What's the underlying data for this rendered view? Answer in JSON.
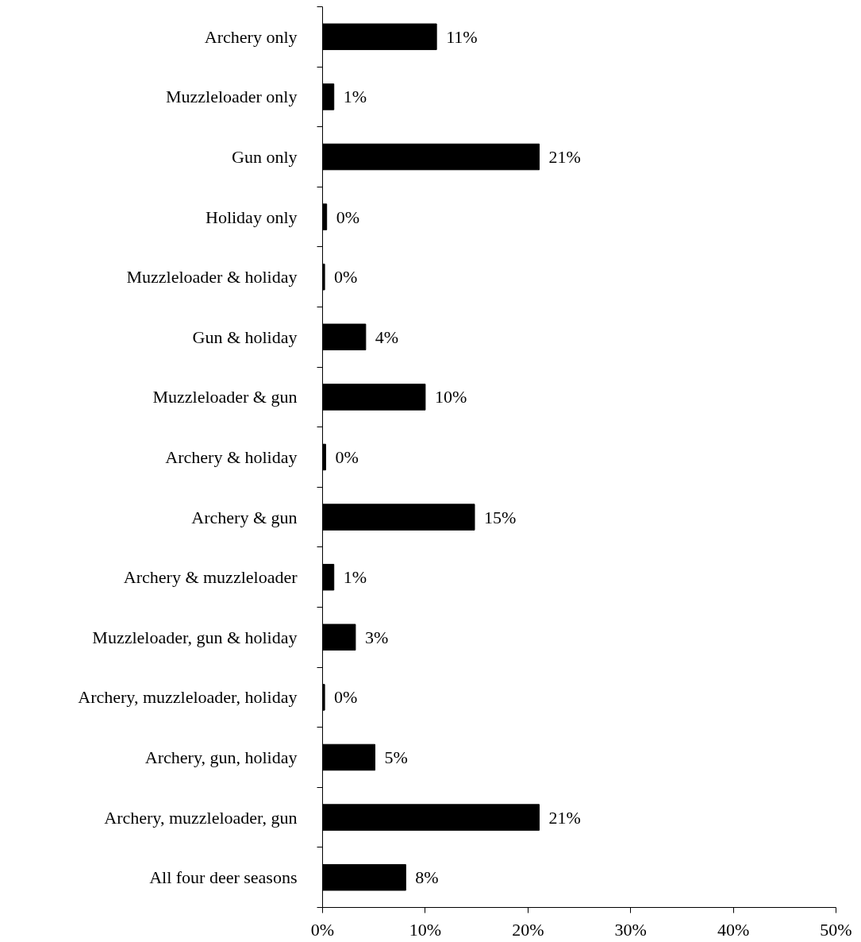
{
  "chart_data": {
    "type": "bar",
    "orientation": "horizontal",
    "categories": [
      "Archery only",
      "Muzzleloader only",
      "Gun only",
      "Holiday only",
      "Muzzleloader & holiday",
      "Gun & holiday",
      "Muzzleloader & gun",
      "Archery & holiday",
      "Archery & gun",
      "Archery & muzzleloader",
      "Muzzleloader, gun & holiday",
      "Archery, muzzleloader, holiday",
      "Archery, gun, holiday",
      "Archery, muzzleloader, gun",
      "All four deer seasons"
    ],
    "values": [
      11.1,
      1.1,
      21.1,
      0.4,
      0.2,
      4.2,
      10.0,
      0.3,
      14.8,
      1.1,
      3.2,
      0.2,
      5.1,
      21.1,
      8.1
    ],
    "value_labels": [
      "11%",
      "1%",
      "21%",
      "0%",
      "0%",
      "4%",
      "10%",
      "0%",
      "15%",
      "1%",
      "3%",
      "0%",
      "5%",
      "21%",
      "8%"
    ],
    "color": "#000000",
    "xlim": [
      0,
      50
    ],
    "xticks": [
      {
        "value": 0,
        "label": "0%"
      },
      {
        "value": 10,
        "label": "10%"
      },
      {
        "value": 20,
        "label": "20%"
      },
      {
        "value": 30,
        "label": "30%"
      },
      {
        "value": 40,
        "label": "40%"
      },
      {
        "value": 50,
        "label": "50%"
      }
    ],
    "grid": false
  }
}
